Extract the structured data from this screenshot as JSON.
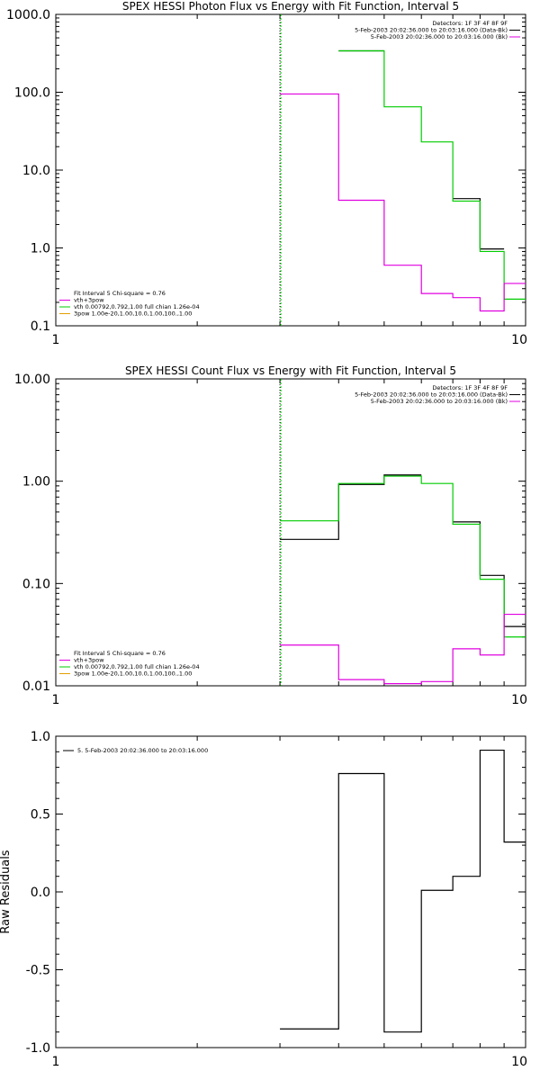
{
  "chart_data": [
    {
      "type": "line",
      "title": "SPEX HESSI Photon Flux vs Energy with Fit Function, Interval 5",
      "xscale": "log",
      "yscale": "log",
      "xlim": [
        1,
        10
      ],
      "ylim": [
        0.1,
        1000
      ],
      "xticks": [
        "1",
        "10"
      ],
      "yticks": [
        {
          "v": 1000,
          "label": "1000.0"
        },
        {
          "v": 100,
          "label": "100.0"
        },
        {
          "v": 10,
          "label": "10.0"
        },
        {
          "v": 1,
          "label": "1.0"
        },
        {
          "v": 0.1,
          "label": "0.1"
        }
      ],
      "vline": 3,
      "legend_top_right": [
        {
          "text": "Detectors: 1F 3F 4F 8F 9F",
          "color": "#000000"
        },
        {
          "text": "5-Feb-2003 20:02:36.000 to 20:03:16.000 (Data-Bk)",
          "color": "#000000"
        },
        {
          "text": "5-Feb-2003 20:02:36.000 to 20:03:16.000 (Bk)",
          "color": "#e000e0"
        }
      ],
      "legend_bottom_left": [
        {
          "text": "Fit Interval 5   Chi-square = 0.76",
          "color": "#000000"
        },
        {
          "text": "vth+3pow",
          "color": "#e000e0"
        },
        {
          "text": "vth 0.00792,0.792,1.00   full chian 1.26e-04",
          "color": "#00cc00"
        },
        {
          "text": "3pow 1.00e-20,1.00,10.0,1.00,100.,1.00",
          "color": "#e0a000"
        }
      ],
      "edges": [
        3,
        4,
        5,
        6,
        7,
        8,
        9,
        10
      ],
      "series": [
        {
          "color": "#000000",
          "values": [
            null,
            340,
            null,
            null,
            4.3,
            0.97,
            null
          ]
        },
        {
          "color": "#00cc00",
          "values": [
            null,
            340,
            65,
            23,
            4.0,
            0.9,
            0.22
          ]
        },
        {
          "color": "#e000e0",
          "values": [
            95,
            4.1,
            0.6,
            0.26,
            0.23,
            0.155,
            0.35
          ]
        }
      ]
    },
    {
      "type": "line",
      "title": "SPEX HESSI Count Flux vs Energy with Fit Function, Interval 5",
      "xscale": "log",
      "yscale": "log",
      "xlim": [
        1,
        10
      ],
      "ylim": [
        0.01,
        10
      ],
      "xticks": [
        "1",
        "10"
      ],
      "yticks": [
        {
          "v": 10,
          "label": "10.00"
        },
        {
          "v": 1,
          "label": "1.00"
        },
        {
          "v": 0.1,
          "label": "0.10"
        },
        {
          "v": 0.01,
          "label": "0.01"
        }
      ],
      "vline": 3,
      "legend_top_right": [
        {
          "text": "Detectors: 1F 3F 4F 8F 9F",
          "color": "#000000"
        },
        {
          "text": "5-Feb-2003 20:02:36.000 to 20:03:16.000 (Data-Bk)",
          "color": "#000000"
        },
        {
          "text": "5-Feb-2003 20:02:36.000 to 20:03:16.000 (Bk)",
          "color": "#e000e0"
        }
      ],
      "legend_bottom_left": [
        {
          "text": "Fit Interval 5   Chi-square = 0.76",
          "color": "#000000"
        },
        {
          "text": "vth+3pow",
          "color": "#e000e0"
        },
        {
          "text": "vth 0.00792,0.792,1.00   full chian 1.26e-04",
          "color": "#00cc00"
        },
        {
          "text": "3pow 1.00e-20,1.00,10.0,1.00,100.,1.00",
          "color": "#e0a000"
        }
      ],
      "edges": [
        3,
        4,
        5,
        6,
        7,
        8,
        9,
        10
      ],
      "series": [
        {
          "color": "#000000",
          "values": [
            0.27,
            0.93,
            1.15,
            null,
            0.4,
            0.12,
            0.038
          ]
        },
        {
          "color": "#00cc00",
          "values": [
            0.41,
            0.95,
            1.12,
            0.95,
            0.38,
            0.11,
            0.03
          ]
        },
        {
          "color": "#e000e0",
          "values": [
            0.025,
            0.0115,
            0.0105,
            0.011,
            0.023,
            0.02,
            0.05
          ]
        }
      ]
    },
    {
      "type": "line",
      "title": "",
      "ylabel": "Raw Residuals",
      "xscale": "log",
      "yscale": "linear",
      "xlim": [
        1,
        10
      ],
      "ylim": [
        -1.0,
        1.0
      ],
      "xticks": [
        "1",
        "10"
      ],
      "yticks": [
        {
          "v": 1.0,
          "label": "1.0"
        },
        {
          "v": 0.5,
          "label": "0.5"
        },
        {
          "v": 0.0,
          "label": "0.0"
        },
        {
          "v": -0.5,
          "label": "-0.5"
        },
        {
          "v": -1.0,
          "label": "-1.0"
        }
      ],
      "legend_top_left": [
        {
          "text": "5.  5-Feb-2003 20:02:36.000 to 20:03:16.000",
          "color": "#000000"
        }
      ],
      "edges": [
        3,
        4,
        5,
        6,
        7,
        8,
        9,
        10
      ],
      "series": [
        {
          "color": "#000000",
          "values": [
            -0.88,
            0.76,
            -0.9,
            0.01,
            0.1,
            0.91,
            0.32
          ]
        }
      ]
    }
  ]
}
